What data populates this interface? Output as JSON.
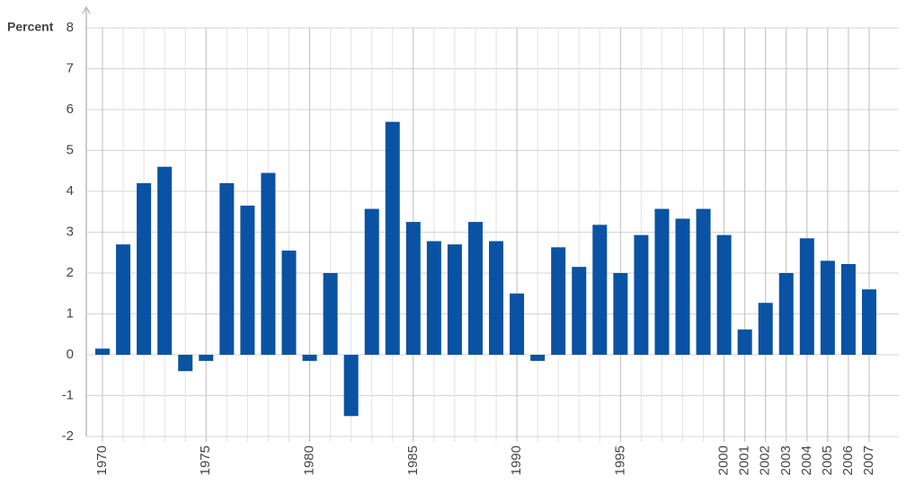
{
  "chart_data": {
    "type": "bar",
    "y_label": "Percent",
    "categories": [
      "1970",
      null,
      null,
      null,
      null,
      "1975",
      null,
      null,
      null,
      null,
      "1980",
      null,
      null,
      null,
      null,
      "1985",
      null,
      null,
      null,
      null,
      "1990",
      null,
      null,
      null,
      null,
      "1995",
      null,
      null,
      null,
      null,
      "2000",
      "2001",
      "2002",
      "2003",
      "2004",
      "2005",
      "2006",
      "2007"
    ],
    "values": [
      0.15,
      2.7,
      4.2,
      4.6,
      -0.4,
      -0.15,
      4.2,
      3.65,
      4.45,
      2.55,
      -0.15,
      2.0,
      -1.5,
      3.57,
      5.7,
      3.25,
      2.78,
      2.7,
      3.25,
      2.78,
      1.5,
      -0.15,
      2.63,
      2.15,
      3.18,
      2.0,
      2.93,
      3.57,
      3.33,
      3.57,
      2.93,
      0.62,
      1.27,
      2.0,
      2.85,
      2.3,
      2.22,
      1.6
    ],
    "color": "#0a52a3",
    "ylim": [
      -2,
      8
    ],
    "yticks": [
      -2,
      -1,
      0,
      1,
      2,
      3,
      4,
      5,
      6,
      7,
      8
    ],
    "grid": true
  }
}
